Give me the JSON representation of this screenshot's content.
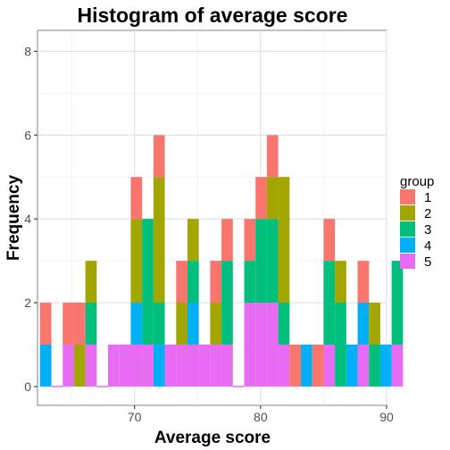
{
  "chart_data": {
    "type": "bar",
    "subtype": "stacked-histogram",
    "title": "Histogram of average score",
    "xlabel": "Average score",
    "ylabel": "Frequency",
    "xlim": [
      62.3,
      90.0
    ],
    "ylim": [
      -0.45,
      8.5
    ],
    "x_ticks": [
      70,
      80,
      90
    ],
    "y_ticks": [
      0,
      2,
      4,
      6,
      8
    ],
    "bin_start": 62.5,
    "bin_width": 0.9,
    "grid": true,
    "legend": {
      "title": "group",
      "position": "right"
    },
    "stack_order": [
      "1",
      "2",
      "3",
      "4",
      "5"
    ],
    "series": [
      {
        "name": "1",
        "color": "#F8766D",
        "values": [
          1,
          0,
          1,
          1,
          0,
          0,
          0,
          0,
          1,
          0,
          1,
          0,
          1,
          0,
          0,
          1,
          1,
          0,
          1,
          1,
          1,
          0,
          1,
          0,
          1,
          1,
          0,
          0,
          1,
          0,
          0,
          0
        ]
      },
      {
        "name": "2",
        "color": "#A3A500",
        "values": [
          0,
          0,
          0,
          1,
          1,
          0,
          0,
          0,
          2,
          0,
          3,
          0,
          1,
          1,
          0,
          1,
          0,
          0,
          0,
          0,
          1,
          3,
          0,
          0,
          0,
          0,
          1,
          0,
          0,
          1,
          0,
          0
        ]
      },
      {
        "name": "3",
        "color": "#00BF7D",
        "values": [
          0,
          0,
          0,
          0,
          1,
          0,
          0,
          0,
          0,
          3,
          1,
          0,
          0,
          1,
          0,
          0,
          2,
          0,
          1,
          2,
          2,
          1,
          0,
          0,
          0,
          2,
          2,
          0,
          0,
          1,
          0,
          2
        ]
      },
      {
        "name": "4",
        "color": "#00B0F6",
        "values": [
          1,
          0,
          0,
          0,
          0,
          0,
          0,
          0,
          1,
          0,
          1,
          0,
          0,
          1,
          0,
          0,
          0,
          0,
          0,
          0,
          0,
          0,
          0,
          1,
          0,
          0,
          0,
          1,
          1,
          0,
          1,
          0
        ]
      },
      {
        "name": "5",
        "color": "#E76BF3",
        "values": [
          0,
          0,
          1,
          0,
          1,
          0,
          1,
          1,
          1,
          1,
          0,
          1,
          1,
          1,
          1,
          1,
          1,
          0,
          2,
          2,
          2,
          1,
          0,
          0,
          0,
          1,
          0,
          0,
          1,
          0,
          0,
          1
        ]
      }
    ]
  }
}
